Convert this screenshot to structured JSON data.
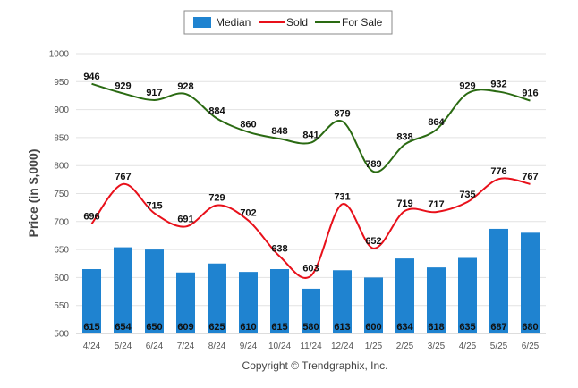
{
  "chart_data": {
    "type": "bar",
    "categories": [
      "4/24",
      "5/24",
      "6/24",
      "7/24",
      "8/24",
      "9/24",
      "10/24",
      "11/24",
      "12/24",
      "1/25",
      "2/25",
      "3/25",
      "4/25",
      "5/25",
      "6/25"
    ],
    "series": [
      {
        "name": "Median",
        "type": "bar",
        "color": "#1f83d0",
        "values": [
          615,
          654,
          650,
          609,
          625,
          610,
          615,
          580,
          613,
          600,
          634,
          618,
          635,
          687,
          680
        ]
      },
      {
        "name": "Sold",
        "type": "line",
        "color": "#e8101a",
        "values": [
          696,
          767,
          715,
          691,
          729,
          702,
          638,
          603,
          731,
          652,
          719,
          717,
          735,
          776,
          767
        ]
      },
      {
        "name": "For Sale",
        "type": "line",
        "color": "#2a6a12",
        "values": [
          946,
          929,
          917,
          928,
          884,
          860,
          848,
          841,
          879,
          789,
          838,
          864,
          929,
          932,
          916
        ]
      }
    ],
    "ylabel": "Price (in $,000)",
    "xlabel": "",
    "ylim": [
      500,
      1000
    ],
    "yticks": [
      500,
      550,
      600,
      650,
      700,
      750,
      800,
      850,
      900,
      950,
      1000
    ],
    "grid": true,
    "legend": "top-center",
    "footer": "Copyright © Trendgraphix, Inc."
  }
}
